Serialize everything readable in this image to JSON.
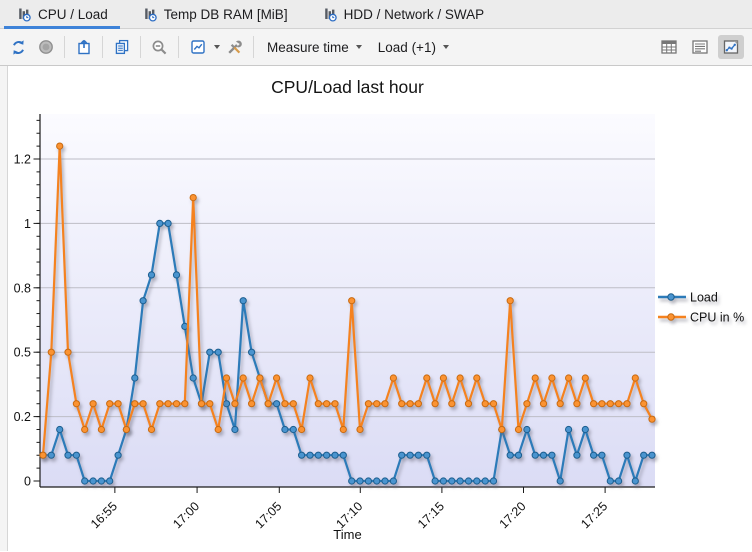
{
  "tabs": [
    {
      "label": "CPU / Load",
      "active": true,
      "icon": "report-clock-icon"
    },
    {
      "label": "Temp DB RAM [MiB]",
      "active": false,
      "icon": "report-clock-icon"
    },
    {
      "label": "HDD / Network / SWAP",
      "active": false,
      "icon": "report-clock-icon"
    }
  ],
  "toolbar": {
    "buttons": [
      {
        "icon": "refresh-icon"
      },
      {
        "icon": "stop-icon"
      },
      {
        "icon": "export-icon"
      },
      {
        "icon": "copy-icon"
      },
      {
        "icon": "zoom-out-icon"
      },
      {
        "icon": "chart-options-icon"
      },
      {
        "icon": "tools-icon"
      }
    ],
    "measure_dropdown_label": "Measure time",
    "load_dropdown_label": "Load (+1)",
    "view_toggles": [
      {
        "icon": "table-view-icon",
        "active": false
      },
      {
        "icon": "list-view-icon",
        "active": false
      },
      {
        "icon": "chart-view-icon",
        "active": true
      }
    ]
  },
  "chart_data": {
    "type": "line",
    "title": "CPU/Load last hour",
    "xlabel": "Time",
    "ylabel": "",
    "start_time": "16:50:30",
    "interval_seconds": 30,
    "ylim": [
      -0.02,
      1.42
    ],
    "grid": true,
    "legend_position": "right",
    "plot_bg_top": "#fbfbff",
    "plot_bg_bottom": "#dbdcf5",
    "y_ticks": [
      {
        "value": 0,
        "label": "0"
      },
      {
        "value": 0.25,
        "label": "0.2"
      },
      {
        "value": 0.5,
        "label": "0.5"
      },
      {
        "value": 0.75,
        "label": "0.8"
      },
      {
        "value": 1,
        "label": "1"
      },
      {
        "value": 1.25,
        "label": "1.2"
      }
    ],
    "x_ticks": [
      {
        "label": "16:55",
        "f": 0.118
      },
      {
        "label": "17:00",
        "f": 0.253
      },
      {
        "label": "17:05",
        "f": 0.388
      },
      {
        "label": "17:10",
        "f": 0.521
      },
      {
        "label": "17:15",
        "f": 0.655
      },
      {
        "label": "17:20",
        "f": 0.789
      },
      {
        "label": "17:25",
        "f": 0.923
      }
    ],
    "series": [
      {
        "name": "Load",
        "color": "#2c7bb9",
        "marker_fill": "#4a94cf",
        "marker_edge": "#1c5e8f",
        "values": [
          0.1,
          0.1,
          0.2,
          0.1,
          0.1,
          0,
          0,
          0,
          0,
          0.1,
          0.2,
          0.4,
          0.7,
          0.8,
          1,
          1,
          0.8,
          0.6,
          0.4,
          0.3,
          0.5,
          0.5,
          0.3,
          0.2,
          0.7,
          0.5,
          0.4,
          0.3,
          0.3,
          0.2,
          0.2,
          0.1,
          0.1,
          0.1,
          0.1,
          0.1,
          0.1,
          0,
          0,
          0,
          0,
          0,
          0,
          0.1,
          0.1,
          0.1,
          0.1,
          0,
          0,
          0,
          0,
          0,
          0,
          0,
          0,
          0.2,
          0.1,
          0.1,
          0.2,
          0.1,
          0.1,
          0.1,
          0,
          0.2,
          0.1,
          0.2,
          0.1,
          0.1,
          0,
          0,
          0.1,
          0,
          0.1,
          0.1
        ]
      },
      {
        "name": "CPU in %",
        "color": "#f5821f",
        "marker_fill": "#fb9332",
        "marker_edge": "#c96a10",
        "values": [
          0.1,
          0.5,
          1.3,
          0.5,
          0.3,
          0.2,
          0.3,
          0.2,
          0.3,
          0.3,
          0.2,
          0.3,
          0.3,
          0.2,
          0.3,
          0.3,
          0.3,
          0.3,
          1.1,
          0.3,
          0.3,
          0.2,
          0.4,
          0.3,
          0.4,
          0.3,
          0.4,
          0.3,
          0.4,
          0.3,
          0.3,
          0.2,
          0.4,
          0.3,
          0.3,
          0.3,
          0.2,
          0.7,
          0.2,
          0.3,
          0.3,
          0.3,
          0.4,
          0.3,
          0.3,
          0.3,
          0.4,
          0.3,
          0.4,
          0.3,
          0.4,
          0.3,
          0.4,
          0.3,
          0.3,
          0.2,
          0.7,
          0.2,
          0.3,
          0.4,
          0.3,
          0.4,
          0.3,
          0.4,
          0.3,
          0.4,
          0.3,
          0.3,
          0.3,
          0.3,
          0.3,
          0.4,
          0.3,
          0.24
        ]
      }
    ]
  }
}
